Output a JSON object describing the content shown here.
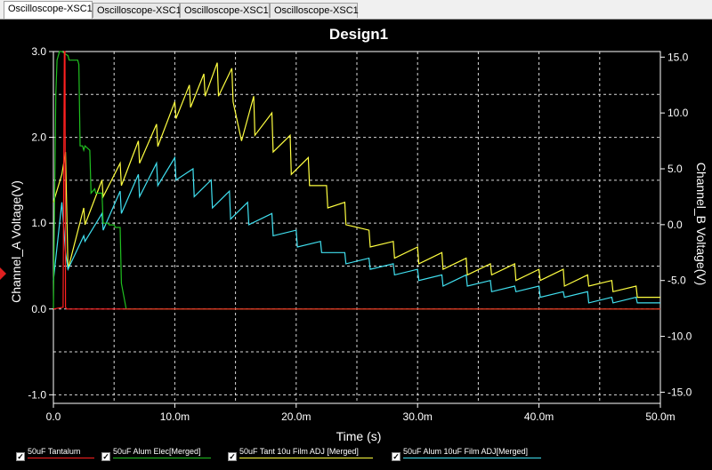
{
  "tabs": [
    "Oscilloscope-XSC1",
    "Oscilloscope-XSC1",
    "Oscilloscope-XSC1",
    "Oscilloscope-XSC1"
  ],
  "chart_data": {
    "type": "line",
    "title": "Design1",
    "xlabel": "Time (s)",
    "ylabel": "Channel_A Voltage(V)",
    "y2label": "Channel_B Voltage(V)",
    "xlim": [
      0,
      0.05
    ],
    "ylim": [
      -1.1,
      3.0
    ],
    "y2lim": [
      -16,
      15.5
    ],
    "x_ticks": [
      0,
      0.01,
      0.02,
      0.03,
      0.04,
      0.05
    ],
    "x_tick_labels": [
      "0.0",
      "10.0m",
      "20.0m",
      "30.0m",
      "40.0m",
      "50.0m"
    ],
    "y_ticks": [
      -1.0,
      0.0,
      1.0,
      2.0,
      3.0
    ],
    "y_tick_labels": [
      "-1.0",
      "0.0",
      "1.0",
      "2.0",
      "3.0"
    ],
    "y2_ticks": [
      -15,
      -10,
      -5,
      0,
      5,
      10,
      15
    ],
    "y2_tick_labels": [
      "-15.0",
      "-10.0",
      "-5.0",
      "0.0",
      "5.0",
      "10.0",
      "15.0"
    ],
    "grid": true,
    "legend_position": "bottom",
    "series": [
      {
        "name": "50uF Tantalum",
        "color": "#ff2020",
        "axis": "left",
        "x": [
          0,
          0.0008,
          0.0009,
          0.00095,
          0.001,
          0.0011,
          0.05
        ],
        "y": [
          0,
          0.02,
          3.0,
          3.0,
          0.02,
          0,
          0
        ]
      },
      {
        "name": "50uF Alum Elec[Merged]",
        "color": "#20c020",
        "axis": "left",
        "x": [
          0,
          0.0002,
          0.0003,
          0.0005,
          0.0007,
          0.0012,
          0.0013,
          0.002,
          0.0021,
          0.0022,
          0.0024,
          0.0025,
          0.0026,
          0.003,
          0.0031,
          0.0034,
          0.0035,
          0.004,
          0.0041,
          0.0045,
          0.0046,
          0.005,
          0.0051,
          0.0055,
          0.0056,
          0.006,
          0.05
        ],
        "y": [
          0,
          2.5,
          2.9,
          3.0,
          3.0,
          2.95,
          2.9,
          2.9,
          2.85,
          1.9,
          1.9,
          1.85,
          1.9,
          1.85,
          1.35,
          1.4,
          1.35,
          1.35,
          1.0,
          1.0,
          0.98,
          0.98,
          0.95,
          0.95,
          0.3,
          0.0,
          0.0
        ]
      },
      {
        "name": "50uF Tant 10u Film ADJ [Merged]",
        "color": "#ffff40",
        "axis": "right",
        "x": [
          0,
          0.0007,
          0.001,
          0.0012,
          0.0025,
          0.0026,
          0.004,
          0.0041,
          0.0055,
          0.0056,
          0.007,
          0.0071,
          0.0085,
          0.0086,
          0.01,
          0.0101,
          0.0112,
          0.0113,
          0.0124,
          0.0125,
          0.0135,
          0.0136,
          0.0147,
          0.0148,
          0.0155,
          0.0165,
          0.0166,
          0.018,
          0.0181,
          0.0195,
          0.0196,
          0.021,
          0.0211,
          0.0225,
          0.0226,
          0.024,
          0.0241,
          0.026,
          0.0261,
          0.028,
          0.0281,
          0.03,
          0.0301,
          0.032,
          0.0321,
          0.034,
          0.0341,
          0.036,
          0.0361,
          0.038,
          0.0381,
          0.04,
          0.0401,
          0.042,
          0.0421,
          0.044,
          0.0441,
          0.046,
          0.0461,
          0.048,
          0.0481,
          0.05
        ],
        "y": [
          2.0,
          4.5,
          6.5,
          -4.0,
          1.5,
          0.0,
          4.0,
          2.5,
          5.5,
          3.5,
          7.5,
          5.5,
          9.0,
          7.0,
          11.0,
          9.5,
          12.5,
          10.5,
          13.5,
          11.5,
          14.5,
          11.5,
          14.0,
          11.0,
          7.5,
          11.5,
          8.0,
          10.0,
          6.5,
          8.0,
          4.5,
          6.0,
          3.5,
          3.5,
          1.5,
          2.0,
          0.0,
          -0.5,
          -2.0,
          -1.5,
          -3.0,
          -2.0,
          -3.5,
          -2.5,
          -4.0,
          -3.0,
          -4.5,
          -3.5,
          -4.5,
          -3.5,
          -5.0,
          -4.0,
          -5.0,
          -4.0,
          -5.5,
          -4.5,
          -5.5,
          -5.0,
          -6.0,
          -5.5,
          -6.5,
          -6.5
        ]
      },
      {
        "name": "50uF Alum 10uF Film ADJ[Merged]",
        "color": "#40e0f0",
        "axis": "right",
        "x": [
          0,
          0.0007,
          0.001,
          0.0012,
          0.0025,
          0.0026,
          0.004,
          0.0041,
          0.0055,
          0.0056,
          0.007,
          0.0071,
          0.0085,
          0.0086,
          0.01,
          0.0101,
          0.0115,
          0.0116,
          0.013,
          0.0131,
          0.0145,
          0.0146,
          0.016,
          0.0161,
          0.018,
          0.0181,
          0.02,
          0.0201,
          0.022,
          0.0221,
          0.024,
          0.0241,
          0.026,
          0.0261,
          0.028,
          0.0281,
          0.03,
          0.0301,
          0.032,
          0.0321,
          0.034,
          0.0341,
          0.036,
          0.0361,
          0.038,
          0.0381,
          0.04,
          0.0401,
          0.042,
          0.0421,
          0.044,
          0.0441,
          0.046,
          0.0461,
          0.048,
          0.0481,
          0.05
        ],
        "y": [
          -5.0,
          2.0,
          -2.5,
          -4.0,
          -1.0,
          -1.5,
          1.0,
          -0.5,
          3.0,
          1.0,
          4.5,
          2.5,
          5.5,
          3.5,
          6.0,
          4.0,
          5.0,
          2.5,
          4.0,
          1.5,
          3.0,
          0.5,
          2.0,
          0.0,
          1.0,
          -1.0,
          -0.5,
          -2.0,
          -1.5,
          -2.5,
          -2.5,
          -3.5,
          -3.0,
          -4.0,
          -3.5,
          -4.5,
          -4.0,
          -5.0,
          -4.5,
          -5.5,
          -4.5,
          -5.5,
          -5.0,
          -6.0,
          -5.5,
          -6.0,
          -5.5,
          -6.5,
          -6.0,
          -6.5,
          -6.0,
          -7.0,
          -6.5,
          -7.0,
          -6.5,
          -7.0,
          -7.0
        ]
      }
    ]
  }
}
